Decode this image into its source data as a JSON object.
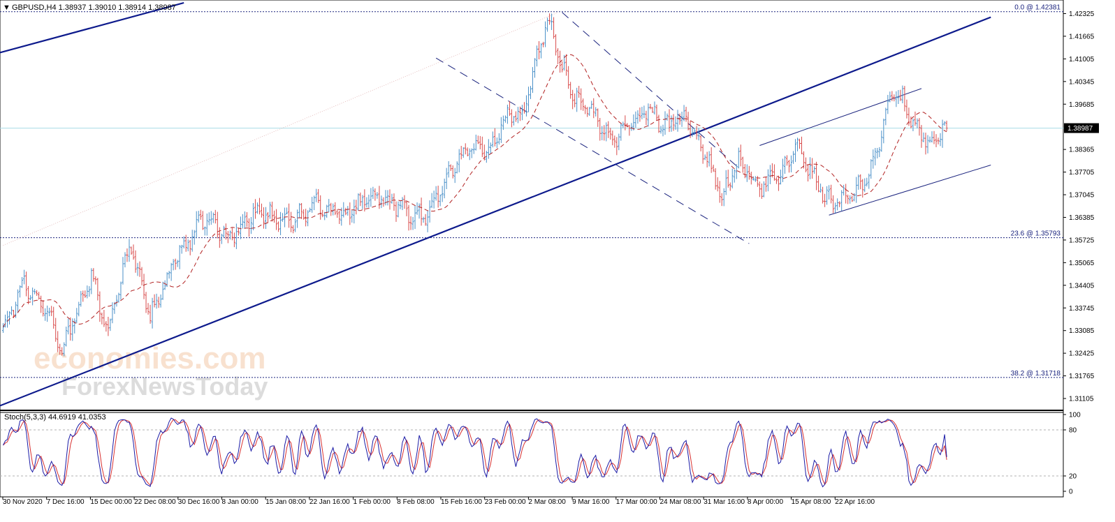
{
  "header": {
    "menu_arrow": "▼",
    "title": "GBPUSD,H4  1.38937 1.39010 1.38914 1.38987"
  },
  "stoch_header": "Stoch(5,3,3) 44.6919 41.0353",
  "watermark": {
    "line1": "economies.com",
    "line2": "ForexNewsToday"
  },
  "current_price": "1.38987",
  "fib_levels": [
    {
      "label": "0.0 @ 1.42381",
      "value": 1.42381
    },
    {
      "label": "23.6 @ 1.35793",
      "value": 1.35793
    },
    {
      "label": "38.2 @ 1.31718",
      "value": 1.31718
    }
  ],
  "colors": {
    "up": "#4a90c8",
    "down": "#d84a4a",
    "ma": "#b22222",
    "trend": "#0d1a8c",
    "channel": "#1a237e",
    "grid_fib": "#1a237e",
    "price_line": "#a7dbe6",
    "stoch_main": "#1a1aa6",
    "stoch_signal": "#d83030"
  },
  "chart_data": {
    "type": "candlestick",
    "symbol": "GBPUSD",
    "timeframe": "H4",
    "ylim": [
      1.3078,
      1.4264
    ],
    "y_ticks": [
      "1.42325",
      "1.41665",
      "1.41005",
      "1.40345",
      "1.39685",
      "1.38365",
      "1.37705",
      "1.37045",
      "1.36385",
      "1.35725",
      "1.35065",
      "1.34405",
      "1.33745",
      "1.33085",
      "1.32425",
      "1.31765",
      "1.31105"
    ],
    "x_ticks": [
      "30 Nov 2020",
      "7 Dec 16:00",
      "15 Dec 00:00",
      "22 Dec 08:00",
      "30 Dec 16:00",
      "8 Jan 00:00",
      "15 Jan 08:00",
      "22 Jan 16:00",
      "1 Feb 00:00",
      "8 Feb 08:00",
      "15 Feb 16:00",
      "23 Feb 00:00",
      "2 Mar 08:00",
      "9 Mar 16:00",
      "17 Mar 00:00",
      "24 Mar 08:00",
      "31 Mar 16:00",
      "8 Apr 00:00",
      "15 Apr 08:00",
      "22 Apr 16:00"
    ],
    "bars": 450,
    "anchors": [
      [
        0,
        1.332
      ],
      [
        10,
        1.345
      ],
      [
        22,
        1.335
      ],
      [
        28,
        1.325
      ],
      [
        42,
        1.347
      ],
      [
        50,
        1.33
      ],
      [
        60,
        1.356
      ],
      [
        70,
        1.335
      ],
      [
        82,
        1.352
      ],
      [
        96,
        1.364
      ],
      [
        108,
        1.358
      ],
      [
        122,
        1.366
      ],
      [
        136,
        1.362
      ],
      [
        150,
        1.368
      ],
      [
        162,
        1.364
      ],
      [
        176,
        1.371
      ],
      [
        190,
        1.366
      ],
      [
        200,
        1.364
      ],
      [
        212,
        1.376
      ],
      [
        222,
        1.384
      ],
      [
        232,
        1.384
      ],
      [
        240,
        1.394
      ],
      [
        247,
        1.392
      ],
      [
        254,
        1.412
      ],
      [
        260,
        1.421
      ],
      [
        265,
        1.408
      ],
      [
        272,
        1.399
      ],
      [
        282,
        1.393
      ],
      [
        290,
        1.386
      ],
      [
        300,
        1.392
      ],
      [
        307,
        1.396
      ],
      [
        315,
        1.39
      ],
      [
        325,
        1.393
      ],
      [
        333,
        1.384
      ],
      [
        342,
        1.37
      ],
      [
        350,
        1.38
      ],
      [
        360,
        1.373
      ],
      [
        370,
        1.376
      ],
      [
        378,
        1.385
      ],
      [
        386,
        1.375
      ],
      [
        392,
        1.369
      ],
      [
        398,
        1.368
      ],
      [
        410,
        1.374
      ],
      [
        418,
        1.388
      ],
      [
        423,
        1.4
      ],
      [
        428,
        1.398
      ],
      [
        434,
        1.39
      ],
      [
        440,
        1.386
      ],
      [
        449,
        1.3899
      ]
    ],
    "ma_period": 20,
    "stochastic": {
      "k": 5,
      "d": 3,
      "slowing": 3,
      "main": 44.6919,
      "signal": 41.0353,
      "levels": [
        20,
        80
      ],
      "range": [
        0,
        100
      ],
      "ticks": [
        "100",
        "80",
        "20",
        "0"
      ]
    },
    "annotations": [
      {
        "kind": "trendline",
        "style": "solid-thick",
        "from": [
          -20,
          1.3045
        ],
        "to": [
          470,
          1.4222
        ]
      },
      {
        "kind": "trendline",
        "style": "solid-thick",
        "from": [
          -20,
          1.4088
        ],
        "to": [
          86,
          1.4264
        ]
      },
      {
        "kind": "trendline",
        "style": "dashed",
        "from": [
          266,
          1.4236
        ],
        "to": [
          350,
          1.3783
        ]
      },
      {
        "kind": "trendline",
        "style": "dashed",
        "from": [
          206,
          1.4103
        ],
        "to": [
          355,
          1.3562
        ]
      },
      {
        "kind": "trendline",
        "style": "solid-thin",
        "from": [
          360,
          1.3848
        ],
        "to": [
          437,
          1.4014
        ]
      },
      {
        "kind": "trendline",
        "style": "solid-thin",
        "from": [
          393,
          1.3645
        ],
        "to": [
          470,
          1.3791
        ]
      },
      {
        "kind": "trendline",
        "style": "dotted-faint",
        "from": [
          0,
          1.3557
        ],
        "to": [
          264,
          1.4236
        ]
      }
    ]
  }
}
